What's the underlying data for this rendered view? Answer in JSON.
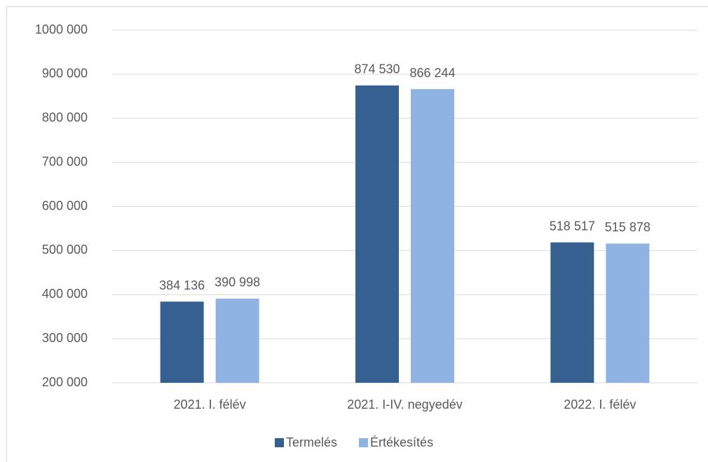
{
  "chart_data": {
    "type": "bar",
    "categories": [
      "2021. I. félév",
      "2021. I-IV. negyedév",
      "2022. I. félév"
    ],
    "series": [
      {
        "name": "Termelés",
        "color": "#35608f",
        "values": [
          384136,
          874530,
          518517
        ],
        "value_labels": [
          "384 136",
          "874 530",
          "518 517"
        ]
      },
      {
        "name": "Értékesítés",
        "color": "#8fb4e3",
        "values": [
          390998,
          866244,
          515878
        ],
        "value_labels": [
          "390 998",
          "866 244",
          "515 878"
        ]
      }
    ],
    "ylim": [
      200000,
      1000000
    ],
    "yticks": [
      {
        "value": 200000,
        "label": "200 000"
      },
      {
        "value": 300000,
        "label": "300 000"
      },
      {
        "value": 400000,
        "label": "400 000"
      },
      {
        "value": 500000,
        "label": "500 000"
      },
      {
        "value": 600000,
        "label": "600 000"
      },
      {
        "value": 700000,
        "label": "700 000"
      },
      {
        "value": 800000,
        "label": "800 000"
      },
      {
        "value": 900000,
        "label": "900 000"
      },
      {
        "value": 1000000,
        "label": "1000 000"
      }
    ],
    "grid": true,
    "legend": "bottom"
  }
}
